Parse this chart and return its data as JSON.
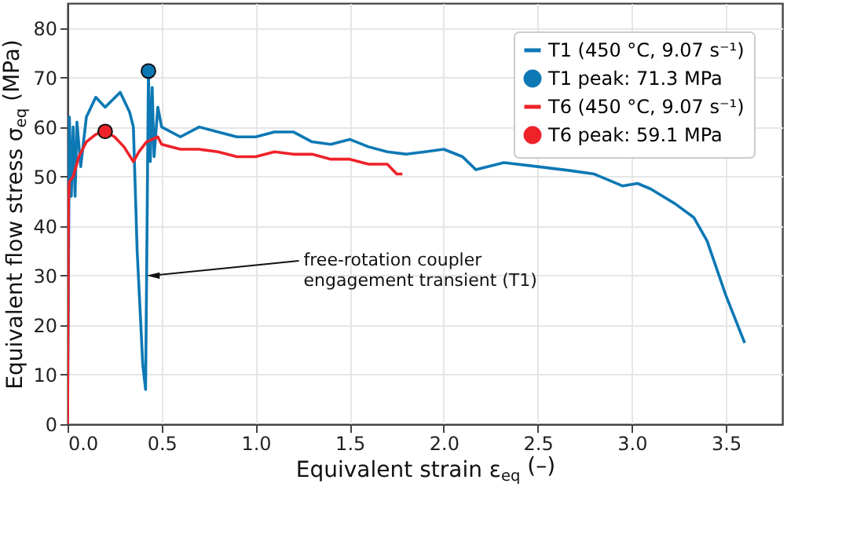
{
  "chart_data": {
    "type": "line",
    "xlabel": "Equivalent strain ε$_{eq}$ (–)",
    "ylabel": "Equivalent flow stress σ$_{eq}$ (MPa)",
    "xlim": [
      0,
      3.8
    ],
    "ylim": [
      0,
      85
    ],
    "xticks": [
      {
        "value": 0,
        "label": "0.0"
      },
      0.5,
      {
        "value": 1,
        "label": "1.0"
      },
      1.5,
      {
        "value": 2,
        "label": "2.0"
      },
      2.5,
      {
        "value": 3,
        "label": "3.0"
      },
      3.5
    ],
    "yticks": [
      0,
      10,
      20,
      30,
      40,
      50,
      60,
      70,
      80
    ],
    "grid": true,
    "legend": "top right",
    "annotations": [
      {
        "text": "free-rotation coupler\nengagement transient (T1)",
        "x": 0.43,
        "y": 30
      }
    ],
    "series": [
      {
        "name": "T1 (450 °C, 9.07 s⁻¹)",
        "color": "#0c78b4",
        "x": [
          0,
          0.01,
          0.02,
          0.03,
          0.04,
          0.05,
          0.07,
          0.1,
          0.15,
          0.2,
          0.28,
          0.33,
          0.35,
          0.37,
          0.4,
          0.415,
          0.43,
          0.44,
          0.45,
          0.46,
          0.48,
          0.5,
          0.6,
          0.7,
          0.8,
          0.9,
          1.0,
          1.1,
          1.2,
          1.3,
          1.4,
          1.5,
          1.6,
          1.7,
          1.8,
          1.9,
          2.0,
          2.1,
          2.17,
          2.32,
          2.5,
          2.67,
          2.8,
          2.95,
          3.03,
          3.1,
          3.23,
          3.33,
          3.4,
          3.5,
          3.6
        ],
        "values": [
          0,
          62,
          46,
          60,
          46,
          61,
          52,
          62,
          66,
          64,
          67,
          63,
          60,
          35,
          12,
          7,
          71.3,
          53,
          68,
          54,
          64,
          60,
          58,
          60,
          59,
          58,
          58,
          59,
          59,
          57,
          56.5,
          57.5,
          56,
          55,
          54.5,
          55,
          55.5,
          54,
          51.4,
          52.8,
          52,
          51.2,
          50.5,
          48.1,
          48.6,
          47.5,
          44.5,
          41.7,
          37,
          26,
          16.4
        ]
      },
      {
        "name": "T1 peak: 71.3 MPa",
        "type": "scatter",
        "color": "#0c78b4",
        "marker": "circle",
        "x": [
          0.43
        ],
        "values": [
          71.3
        ]
      },
      {
        "name": "T6 (450 °C, 9.07 s⁻¹)",
        "color": "#ee2229",
        "x": [
          0,
          0.005,
          0.01,
          0.03,
          0.06,
          0.1,
          0.15,
          0.2,
          0.25,
          0.3,
          0.35,
          0.38,
          0.42,
          0.45,
          0.48,
          0.5,
          0.6,
          0.7,
          0.8,
          0.9,
          1.0,
          1.1,
          1.2,
          1.3,
          1.4,
          1.5,
          1.6,
          1.7,
          1.75,
          1.78
        ],
        "values": [
          0,
          45,
          49,
          50,
          54,
          57,
          58.5,
          59.1,
          58,
          56,
          53,
          55,
          57,
          57.5,
          58,
          56.5,
          55.5,
          55.5,
          55,
          54,
          54,
          55,
          54.5,
          54.5,
          53.5,
          53.5,
          52.5,
          52.5,
          50.5,
          50.5
        ]
      },
      {
        "name": "T6 peak: 59.1 MPa",
        "type": "scatter",
        "color": "#ee2229",
        "marker": "circle",
        "x": [
          0.2
        ],
        "values": [
          59.1
        ]
      }
    ]
  }
}
